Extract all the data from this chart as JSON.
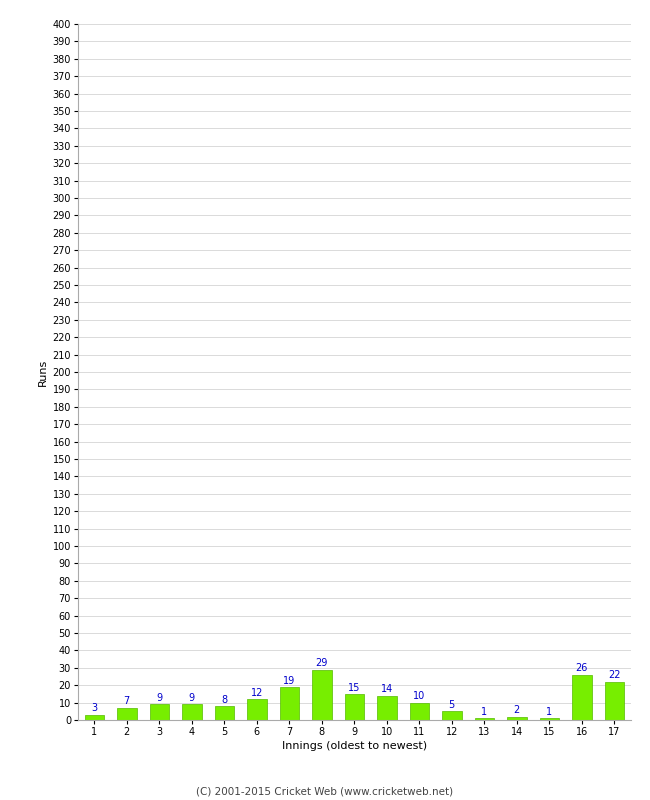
{
  "categories": [
    1,
    2,
    3,
    4,
    5,
    6,
    7,
    8,
    9,
    10,
    11,
    12,
    13,
    14,
    15,
    16,
    17
  ],
  "values": [
    3,
    7,
    9,
    9,
    8,
    12,
    19,
    29,
    15,
    14,
    10,
    5,
    1,
    2,
    1,
    26,
    22
  ],
  "bar_color": "#77ee00",
  "bar_edge_color": "#55bb00",
  "ylabel": "Runs",
  "xlabel": "Innings (oldest to newest)",
  "ytick_min": 0,
  "ytick_max": 400,
  "ytick_step": 10,
  "label_color": "#0000cc",
  "background_color": "#ffffff",
  "grid_color": "#cccccc",
  "footer": "(C) 2001-2015 Cricket Web (www.cricketweb.net)"
}
